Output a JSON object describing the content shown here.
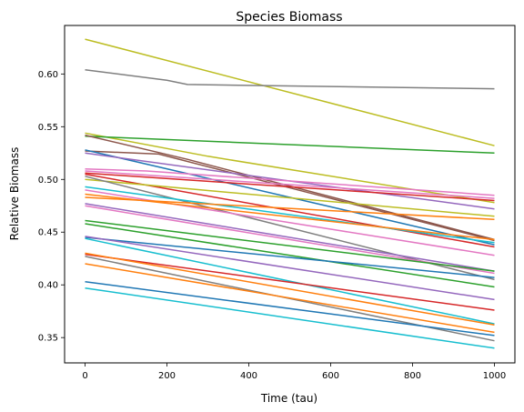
{
  "chart_data": {
    "type": "line",
    "title": "Species Biomass",
    "xlabel": "Time (tau)",
    "ylabel": "Relative Biomass",
    "xlim": [
      -50,
      1050
    ],
    "ylim": [
      0.326,
      0.646
    ],
    "xticks": [
      0,
      200,
      400,
      600,
      800,
      1000
    ],
    "yticks": [
      0.35,
      0.4,
      0.45,
      0.5,
      0.55,
      0.6
    ],
    "ytick_labels": [
      "0.35",
      "0.40",
      "0.45",
      "0.50",
      "0.55",
      "0.60"
    ],
    "grid": false,
    "legend": "none",
    "series": [
      {
        "color": "#bcbd22",
        "x": [
          0,
          1000
        ],
        "y": [
          0.633,
          0.532
        ]
      },
      {
        "color": "#7f7f7f",
        "x": [
          0,
          200,
          250,
          1000
        ],
        "y": [
          0.604,
          0.594,
          0.59,
          0.586
        ]
      },
      {
        "color": "#bcbd22",
        "x": [
          0,
          300,
          1000
        ],
        "y": [
          0.544,
          0.522,
          0.478
        ]
      },
      {
        "color": "#2ca02c",
        "x": [
          0,
          1000
        ],
        "y": [
          0.541,
          0.525
        ]
      },
      {
        "color": "#8c564b",
        "x": [
          0,
          250,
          1000
        ],
        "y": [
          0.542,
          0.519,
          0.443
        ]
      },
      {
        "color": "#8c564b",
        "x": [
          0,
          180,
          1000
        ],
        "y": [
          0.527,
          0.524,
          0.442
        ]
      },
      {
        "color": "#1f77b4",
        "x": [
          0,
          1000
        ],
        "y": [
          0.528,
          0.438
        ]
      },
      {
        "color": "#9467bd",
        "x": [
          0,
          1000
        ],
        "y": [
          0.525,
          0.472
        ]
      },
      {
        "color": "#e377c2",
        "x": [
          0,
          150,
          1000
        ],
        "y": [
          0.51,
          0.508,
          0.485
        ]
      },
      {
        "color": "#d62728",
        "x": [
          0,
          1000
        ],
        "y": [
          0.506,
          0.48
        ]
      },
      {
        "color": "#e377c2",
        "x": [
          0,
          1000
        ],
        "y": [
          0.508,
          0.482
        ]
      },
      {
        "color": "#d62728",
        "x": [
          0,
          1000
        ],
        "y": [
          0.505,
          0.436
        ]
      },
      {
        "color": "#bcbd22",
        "x": [
          0,
          1000
        ],
        "y": [
          0.5,
          0.465
        ]
      },
      {
        "color": "#7f7f7f",
        "x": [
          0,
          1000
        ],
        "y": [
          0.503,
          0.405
        ]
      },
      {
        "color": "#17becf",
        "x": [
          0,
          1000
        ],
        "y": [
          0.493,
          0.44
        ]
      },
      {
        "color": "#e377c2",
        "x": [
          0,
          1000
        ],
        "y": [
          0.49,
          0.428
        ]
      },
      {
        "color": "#ff7f0e",
        "x": [
          0,
          1000
        ],
        "y": [
          0.483,
          0.462
        ]
      },
      {
        "color": "#ff7f0e",
        "x": [
          0,
          1000
        ],
        "y": [
          0.486,
          0.443
        ]
      },
      {
        "color": "#9467bd",
        "x": [
          0,
          1000
        ],
        "y": [
          0.477,
          0.413
        ]
      },
      {
        "color": "#e377c2",
        "x": [
          0,
          1000
        ],
        "y": [
          0.475,
          0.411
        ]
      },
      {
        "color": "#2ca02c",
        "x": [
          0,
          1000
        ],
        "y": [
          0.461,
          0.413
        ]
      },
      {
        "color": "#2ca02c",
        "x": [
          0,
          1000
        ],
        "y": [
          0.458,
          0.398
        ]
      },
      {
        "color": "#1f77b4",
        "x": [
          0,
          1000
        ],
        "y": [
          0.445,
          0.407
        ]
      },
      {
        "color": "#17becf",
        "x": [
          0,
          1000
        ],
        "y": [
          0.444,
          0.363
        ]
      },
      {
        "color": "#9467bd",
        "x": [
          0,
          1000
        ],
        "y": [
          0.446,
          0.386
        ]
      },
      {
        "color": "#d62728",
        "x": [
          0,
          1000
        ],
        "y": [
          0.429,
          0.376
        ]
      },
      {
        "color": "#ff7f0e",
        "x": [
          0,
          1000
        ],
        "y": [
          0.43,
          0.362
        ]
      },
      {
        "color": "#7f7f7f",
        "x": [
          0,
          1000
        ],
        "y": [
          0.427,
          0.347
        ]
      },
      {
        "color": "#ff7f0e",
        "x": [
          0,
          1000
        ],
        "y": [
          0.42,
          0.355
        ]
      },
      {
        "color": "#1f77b4",
        "x": [
          0,
          1000
        ],
        "y": [
          0.403,
          0.352
        ]
      },
      {
        "color": "#17becf",
        "x": [
          0,
          1000
        ],
        "y": [
          0.397,
          0.34
        ]
      }
    ]
  }
}
